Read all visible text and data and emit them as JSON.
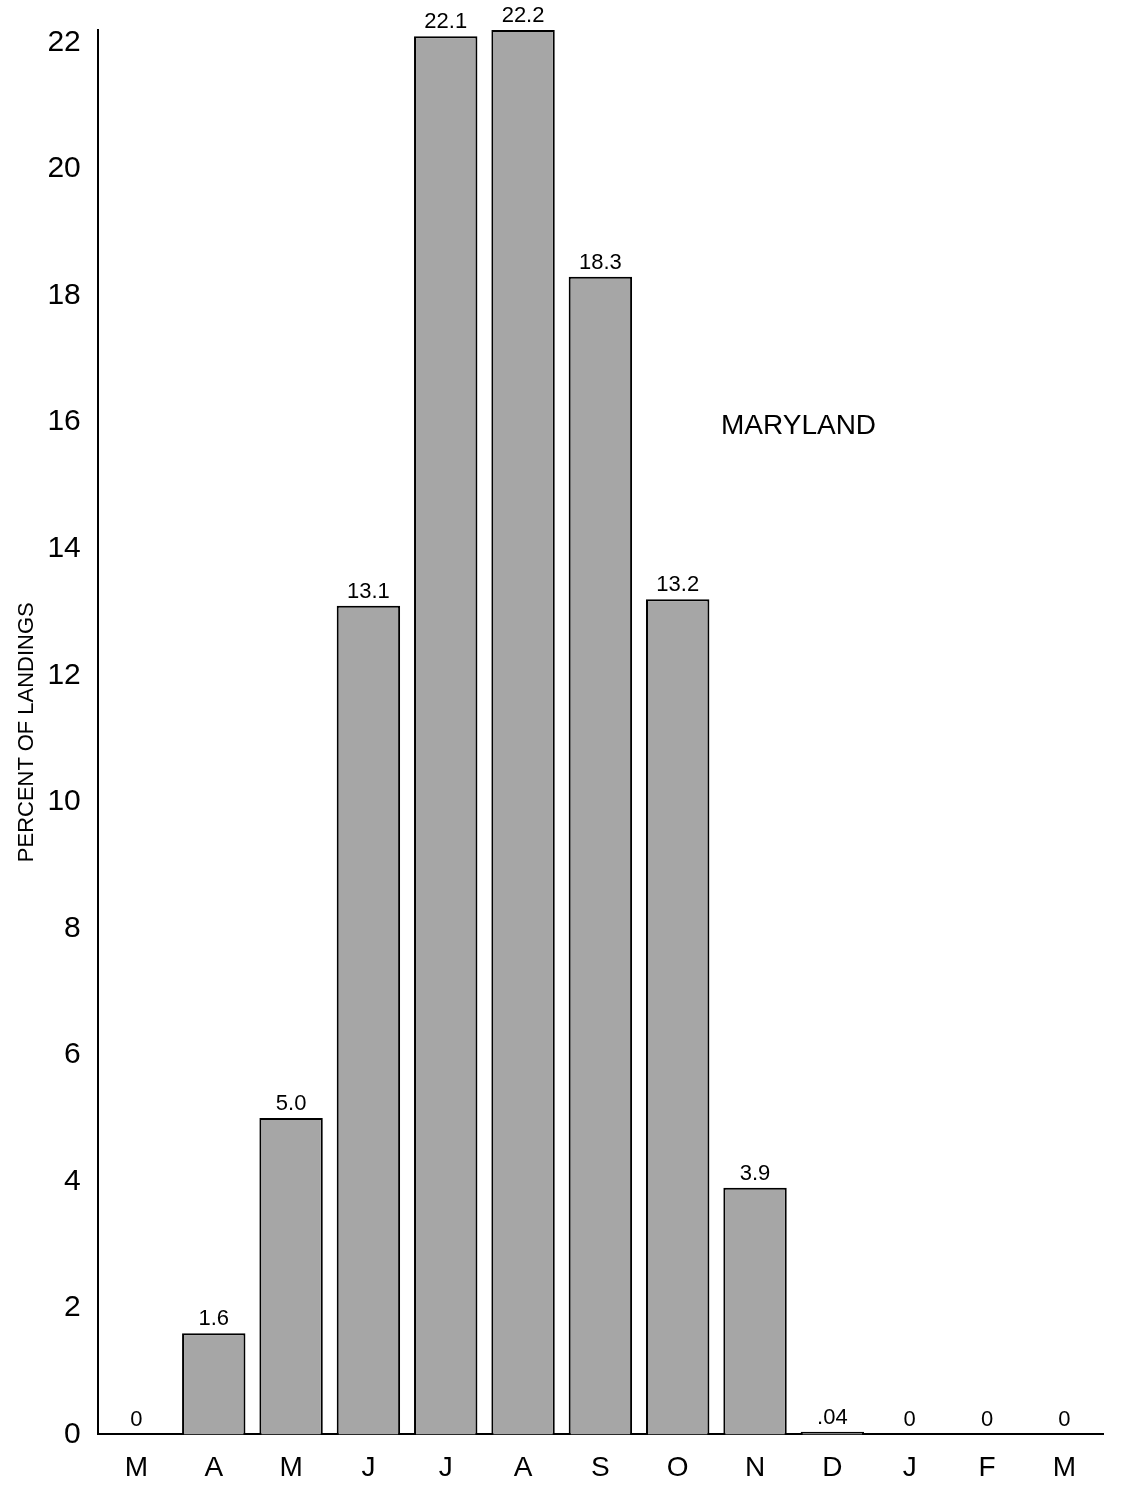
{
  "chart_data": {
    "type": "bar",
    "ylabel": "PERCENT OF LANDINGS",
    "annotations": [
      "MARYLAND"
    ],
    "categories": [
      "M",
      "A",
      "M",
      "J",
      "J",
      "A",
      "S",
      "O",
      "N",
      "D",
      "J",
      "F",
      "M"
    ],
    "values": [
      0,
      1.6,
      5.0,
      13.1,
      22.1,
      22.2,
      18.3,
      13.2,
      3.9,
      0.04,
      0,
      0,
      0
    ],
    "value_labels": [
      "0",
      "1.6",
      "5.0",
      "13.1",
      "22.1",
      "22.2",
      "18.3",
      "13.2",
      "3.9",
      ".04",
      "0",
      "0",
      "0"
    ],
    "color": "#a6a6a6",
    "ylim": [
      0,
      22.2
    ],
    "yticks": [
      0,
      2,
      4,
      6,
      8,
      10,
      12,
      14,
      16,
      18,
      20,
      22
    ],
    "grid": false,
    "legend": false
  }
}
